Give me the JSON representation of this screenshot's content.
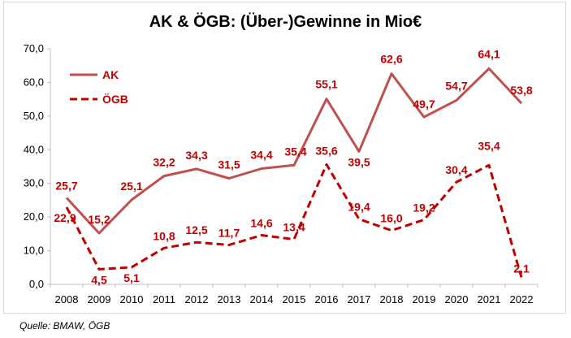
{
  "chart_data": {
    "type": "line",
    "title": "AK & ÖGB: (Über-)Gewinne in Mio€",
    "source": "Quelle: BMAW, ÖGB",
    "xlabel": "",
    "ylabel": "",
    "categories": [
      "2008",
      "2009",
      "2010",
      "2011",
      "2012",
      "2013",
      "2014",
      "2015",
      "2016",
      "2017",
      "2018",
      "2019",
      "2020",
      "2021",
      "2022"
    ],
    "ylim": [
      0,
      70
    ],
    "yticks": [
      "0,0",
      "10,0",
      "20,0",
      "30,0",
      "40,0",
      "50,0",
      "60,0",
      "70,0"
    ],
    "grid": false,
    "legend_position": "top-left",
    "series": [
      {
        "name": "AK",
        "style": "solid",
        "color": "#c0504d",
        "label_color": "#c00000",
        "values": [
          25.7,
          15.2,
          25.1,
          32.2,
          34.3,
          31.5,
          34.4,
          35.4,
          55.1,
          39.5,
          62.6,
          49.7,
          54.7,
          64.1,
          53.8
        ],
        "labels": [
          "25,7",
          "15,2",
          "25,1",
          "32,2",
          "34,3",
          "31,5",
          "34,4",
          "35,4",
          "55,1",
          "39,5",
          "62,6",
          "49,7",
          "54,7",
          "64,1",
          "53,8"
        ]
      },
      {
        "name": "ÖGB",
        "style": "dashed",
        "color": "#c00000",
        "label_color": "#c00000",
        "values": [
          22.9,
          4.5,
          5.1,
          10.8,
          12.5,
          11.7,
          14.6,
          13.4,
          35.6,
          19.4,
          16.0,
          19.2,
          30.4,
          35.4,
          2.1
        ],
        "labels": [
          "22,9",
          "4,5",
          "5,1",
          "10,8",
          "12,5",
          "11,7",
          "14,6",
          "13,4",
          "35,6",
          "19,4",
          "16,0",
          "19,2",
          "30,4",
          "35,4",
          "2,1"
        ]
      }
    ]
  }
}
